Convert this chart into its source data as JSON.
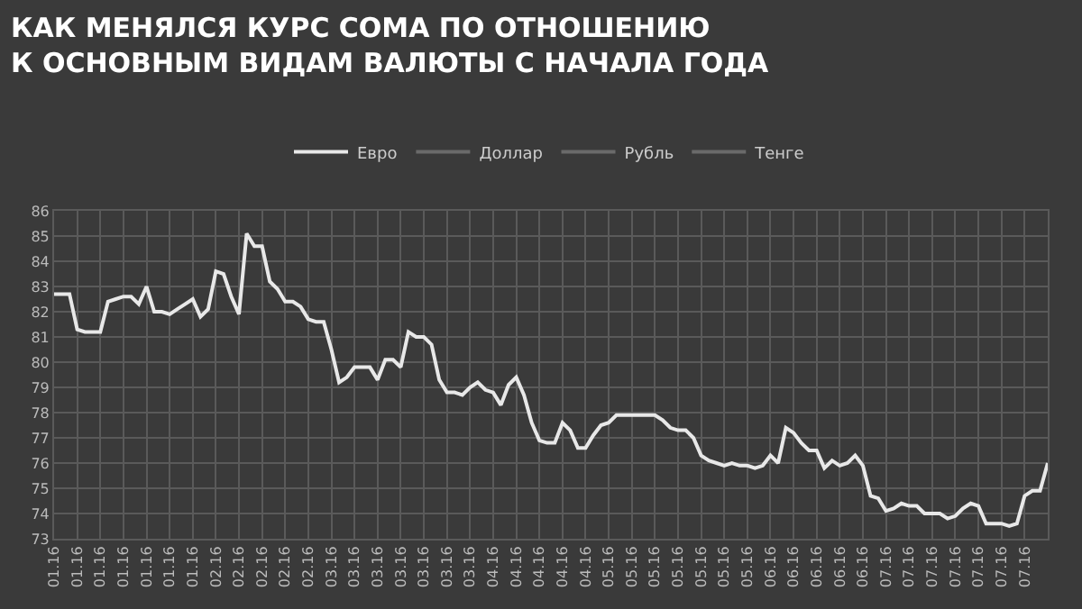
{
  "chart_data": {
    "type": "line",
    "title": "КАК МЕНЯЛСЯ КУРС СОМА ПО ОТНОШЕНИЮ\nК ОСНОВНЫМ ВИДАМ ВАЛЮТЫ С НАЧАЛА ГОДА",
    "categories": [
      "01.16",
      null,
      null,
      "01.16",
      null,
      null,
      "01.16",
      null,
      null,
      "01.16",
      null,
      null,
      "01.16",
      null,
      null,
      "01.16",
      null,
      null,
      "01.16",
      null,
      null,
      "02.16",
      null,
      null,
      "02.16",
      null,
      null,
      "02.16",
      null,
      null,
      "02.16",
      null,
      null,
      "02.16",
      null,
      null,
      "03.16",
      null,
      null,
      "03.16",
      null,
      null,
      "03.16",
      null,
      null,
      "03.16",
      null,
      null,
      "03.16",
      null,
      null,
      "03.16",
      null,
      null,
      "03.16",
      null,
      null,
      "04.16",
      null,
      null,
      "04.16",
      null,
      null,
      "04.16",
      null,
      null,
      "04.16",
      null,
      null,
      "04.16",
      null,
      null,
      "05.16",
      null,
      null,
      "05.16",
      null,
      null,
      "05.16",
      null,
      null,
      "05.16",
      null,
      null,
      "05.16",
      null,
      null,
      "05.16",
      null,
      null,
      "05.16",
      null,
      null,
      "06.16",
      null,
      null,
      "06.16",
      null,
      null,
      "06.16",
      null,
      null,
      "06.16",
      null,
      null,
      "06.16",
      null,
      null,
      "07.16",
      null,
      null,
      "07.16",
      null,
      null,
      "07.16",
      null,
      null,
      "07.16",
      null,
      null,
      "07.16",
      null,
      null,
      "07.16",
      null,
      null,
      "07.16",
      null,
      null,
      null
    ],
    "series": [
      {
        "name": "Евро",
        "color": "#e8e8e8",
        "values": [
          82.7,
          82.7,
          82.7,
          81.3,
          81.2,
          81.2,
          81.2,
          82.4,
          82.5,
          82.6,
          82.6,
          82.3,
          83.0,
          82.0,
          82.0,
          81.9,
          82.1,
          82.3,
          82.5,
          81.8,
          82.1,
          83.6,
          83.5,
          82.6,
          81.9,
          85.1,
          84.6,
          84.6,
          83.2,
          82.9,
          82.4,
          82.4,
          82.2,
          81.7,
          81.6,
          81.6,
          80.5,
          79.2,
          79.4,
          79.8,
          79.8,
          79.8,
          79.3,
          80.1,
          80.1,
          79.8,
          81.2,
          81.0,
          81.0,
          80.7,
          79.3,
          78.8,
          78.8,
          78.7,
          79.0,
          79.2,
          78.9,
          78.8,
          78.3,
          79.1,
          79.4,
          78.7,
          77.6,
          76.9,
          76.8,
          76.8,
          77.6,
          77.3,
          76.6,
          76.6,
          77.1,
          77.5,
          77.6,
          77.9,
          77.9,
          77.9,
          77.9,
          77.9,
          77.9,
          77.7,
          77.4,
          77.3,
          77.3,
          77.0,
          76.3,
          76.1,
          76.0,
          75.9,
          76.0,
          75.9,
          75.9,
          75.8,
          75.9,
          76.3,
          76.0,
          77.4,
          77.2,
          76.8,
          76.5,
          76.5,
          75.8,
          76.1,
          75.9,
          76.0,
          76.3,
          75.9,
          74.7,
          74.6,
          74.1,
          74.2,
          74.4,
          74.3,
          74.3,
          74.0,
          74.0,
          74.0,
          73.8,
          73.9,
          74.2,
          74.4,
          74.3,
          73.6,
          73.6,
          73.6,
          73.5,
          73.6,
          74.7,
          74.9,
          74.9,
          76.0
        ]
      },
      {
        "name": "Доллар",
        "color": "#6a6a6a",
        "values": [
          null,
          null,
          null,
          null,
          null,
          null,
          null,
          null,
          null,
          null,
          null,
          null,
          null,
          null,
          null,
          null,
          null,
          null,
          null,
          null,
          null,
          null,
          null,
          null,
          null,
          null,
          null,
          null,
          null,
          null,
          null,
          null,
          null,
          null,
          null,
          null,
          null,
          null,
          null,
          null,
          null,
          null,
          null,
          null,
          null,
          null,
          null,
          null,
          null,
          null,
          null,
          null,
          null,
          null,
          null,
          null,
          null,
          null,
          null,
          null,
          null,
          null,
          null,
          null,
          null,
          null,
          null,
          null,
          null,
          null,
          null,
          null,
          null,
          null,
          null,
          null,
          null,
          null,
          null,
          null,
          null,
          null,
          null,
          null,
          null,
          null,
          null,
          null,
          null,
          null,
          null,
          null,
          null,
          null,
          null,
          null,
          null,
          null,
          null,
          null,
          null,
          null,
          null,
          null,
          null,
          null,
          null,
          null,
          null,
          null,
          null,
          null,
          null,
          null,
          null,
          null,
          null,
          null,
          null,
          null,
          null,
          null,
          null,
          null,
          null,
          null,
          null,
          null,
          null,
          null
        ]
      },
      {
        "name": "Рубль",
        "color": "#6a6a6a",
        "values": [
          null,
          null,
          null,
          null,
          null,
          null,
          null,
          null,
          null,
          null,
          null,
          null,
          null,
          null,
          null,
          null,
          null,
          null,
          null,
          null,
          null,
          null,
          null,
          null,
          null,
          null,
          null,
          null,
          null,
          null,
          null,
          null,
          null,
          null,
          null,
          null,
          null,
          null,
          null,
          null,
          null,
          null,
          null,
          null,
          null,
          null,
          null,
          null,
          null,
          null,
          null,
          null,
          null,
          null,
          null,
          null,
          null,
          null,
          null,
          null,
          null,
          null,
          null,
          null,
          null,
          null,
          null,
          null,
          null,
          null,
          null,
          null,
          null,
          null,
          null,
          null,
          null,
          null,
          null,
          null,
          null,
          null,
          null,
          null,
          null,
          null,
          null,
          null,
          null,
          null,
          null,
          null,
          null,
          null,
          null,
          null,
          null,
          null,
          null,
          null,
          null,
          null,
          null,
          null,
          null,
          null,
          null,
          null,
          null,
          null,
          null,
          null,
          null,
          null,
          null,
          null,
          null,
          null,
          null,
          null,
          null,
          null,
          null,
          null,
          null,
          null,
          null,
          null,
          null,
          null
        ]
      },
      {
        "name": "Тенге",
        "color": "#6a6a6a",
        "values": [
          null,
          null,
          null,
          null,
          null,
          null,
          null,
          null,
          null,
          null,
          null,
          null,
          null,
          null,
          null,
          null,
          null,
          null,
          null,
          null,
          null,
          null,
          null,
          null,
          null,
          null,
          null,
          null,
          null,
          null,
          null,
          null,
          null,
          null,
          null,
          null,
          null,
          null,
          null,
          null,
          null,
          null,
          null,
          null,
          null,
          null,
          null,
          null,
          null,
          null,
          null,
          null,
          null,
          null,
          null,
          null,
          null,
          null,
          null,
          null,
          null,
          null,
          null,
          null,
          null,
          null,
          null,
          null,
          null,
          null,
          null,
          null,
          null,
          null,
          null,
          null,
          null,
          null,
          null,
          null,
          null,
          null,
          null,
          null,
          null,
          null,
          null,
          null,
          null,
          null,
          null,
          null,
          null,
          null,
          null,
          null,
          null,
          null,
          null,
          null,
          null,
          null,
          null,
          null,
          null,
          null,
          null,
          null,
          null,
          null,
          null,
          null,
          null,
          null,
          null,
          null,
          null,
          null,
          null,
          null,
          null,
          null,
          null,
          null,
          null,
          null,
          null,
          null,
          null,
          null
        ]
      }
    ],
    "ylim": [
      73,
      86
    ],
    "yticks": [
      73,
      74,
      75,
      76,
      77,
      78,
      79,
      80,
      81,
      82,
      83,
      84,
      85,
      86
    ],
    "grid": true,
    "legend": "top",
    "marker": "none",
    "line_style": "solid"
  }
}
